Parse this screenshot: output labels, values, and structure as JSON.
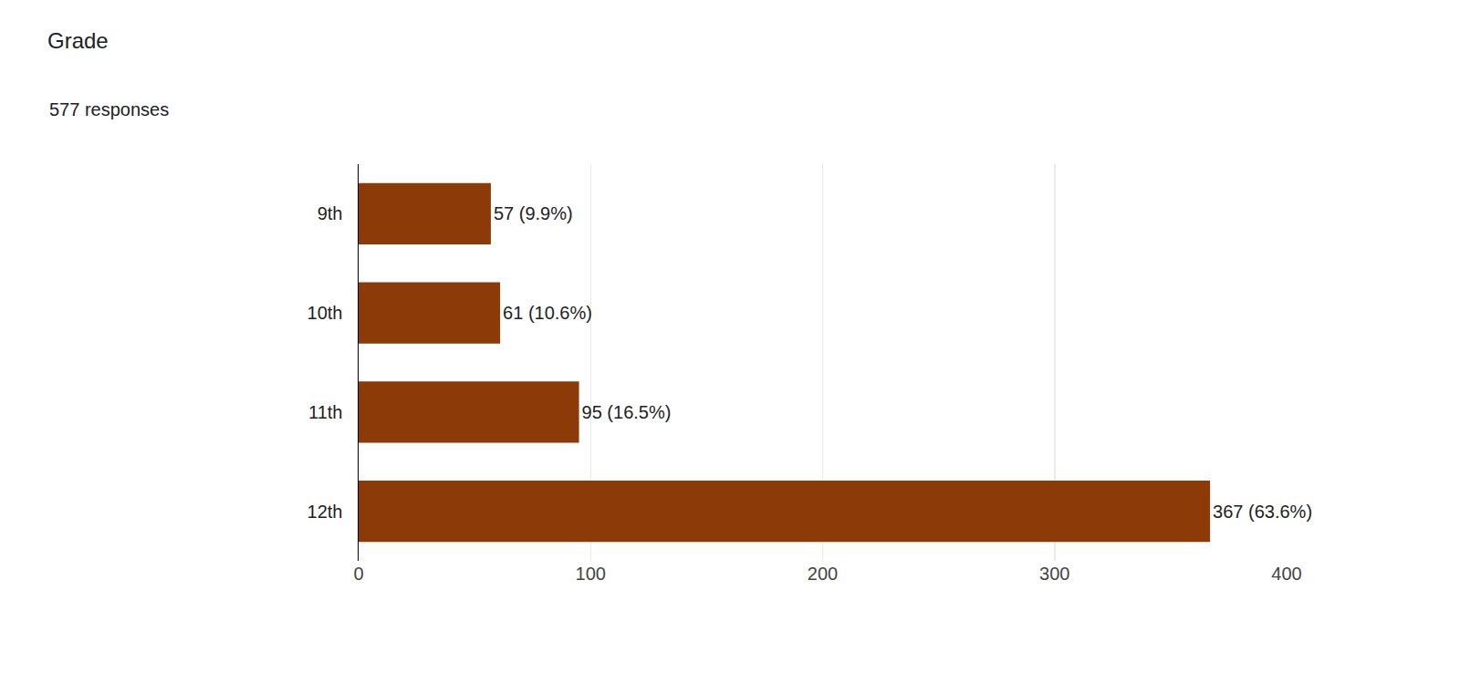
{
  "chart_data": {
    "type": "bar",
    "title": "Grade",
    "subtitle": "577 responses",
    "orientation": "horizontal",
    "categories": [
      "9th",
      "10th",
      "11th",
      "12th"
    ],
    "values": [
      57,
      61,
      95,
      367
    ],
    "value_labels": [
      "57 (9.9%)",
      "61 (10.6%)",
      "95 (16.5%)",
      "367 (63.6%)"
    ],
    "color": "#8b3a08",
    "xlim": [
      0,
      400
    ],
    "xticks": [
      0,
      100,
      200,
      300,
      400
    ],
    "grid": true,
    "data_labels": true
  }
}
